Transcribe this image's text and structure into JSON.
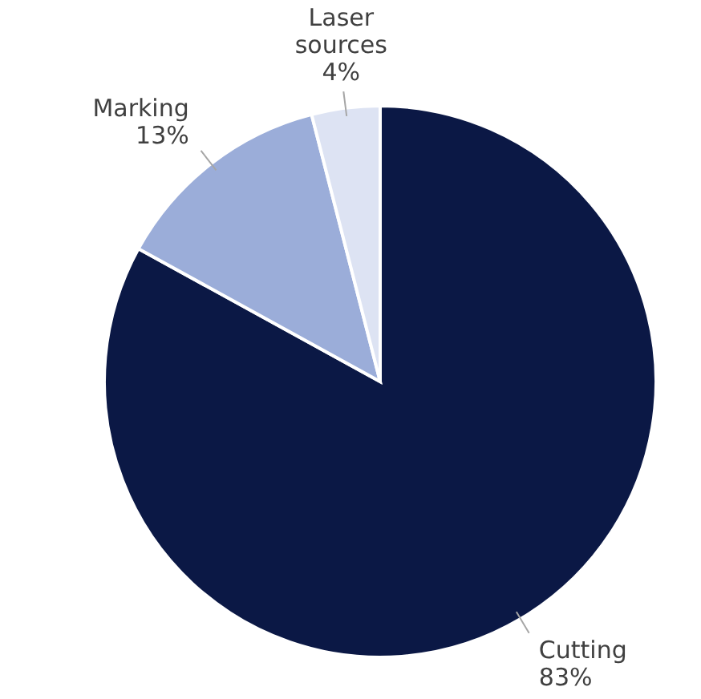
{
  "chart_data": {
    "type": "pie",
    "categories": [
      "Cutting",
      "Marking",
      "Laser sources"
    ],
    "values": [
      83,
      13,
      4
    ],
    "value_labels": [
      "83%",
      "13%",
      "4%"
    ],
    "colors": [
      "#0b1845",
      "#9badd9",
      "#dde3f3"
    ]
  }
}
